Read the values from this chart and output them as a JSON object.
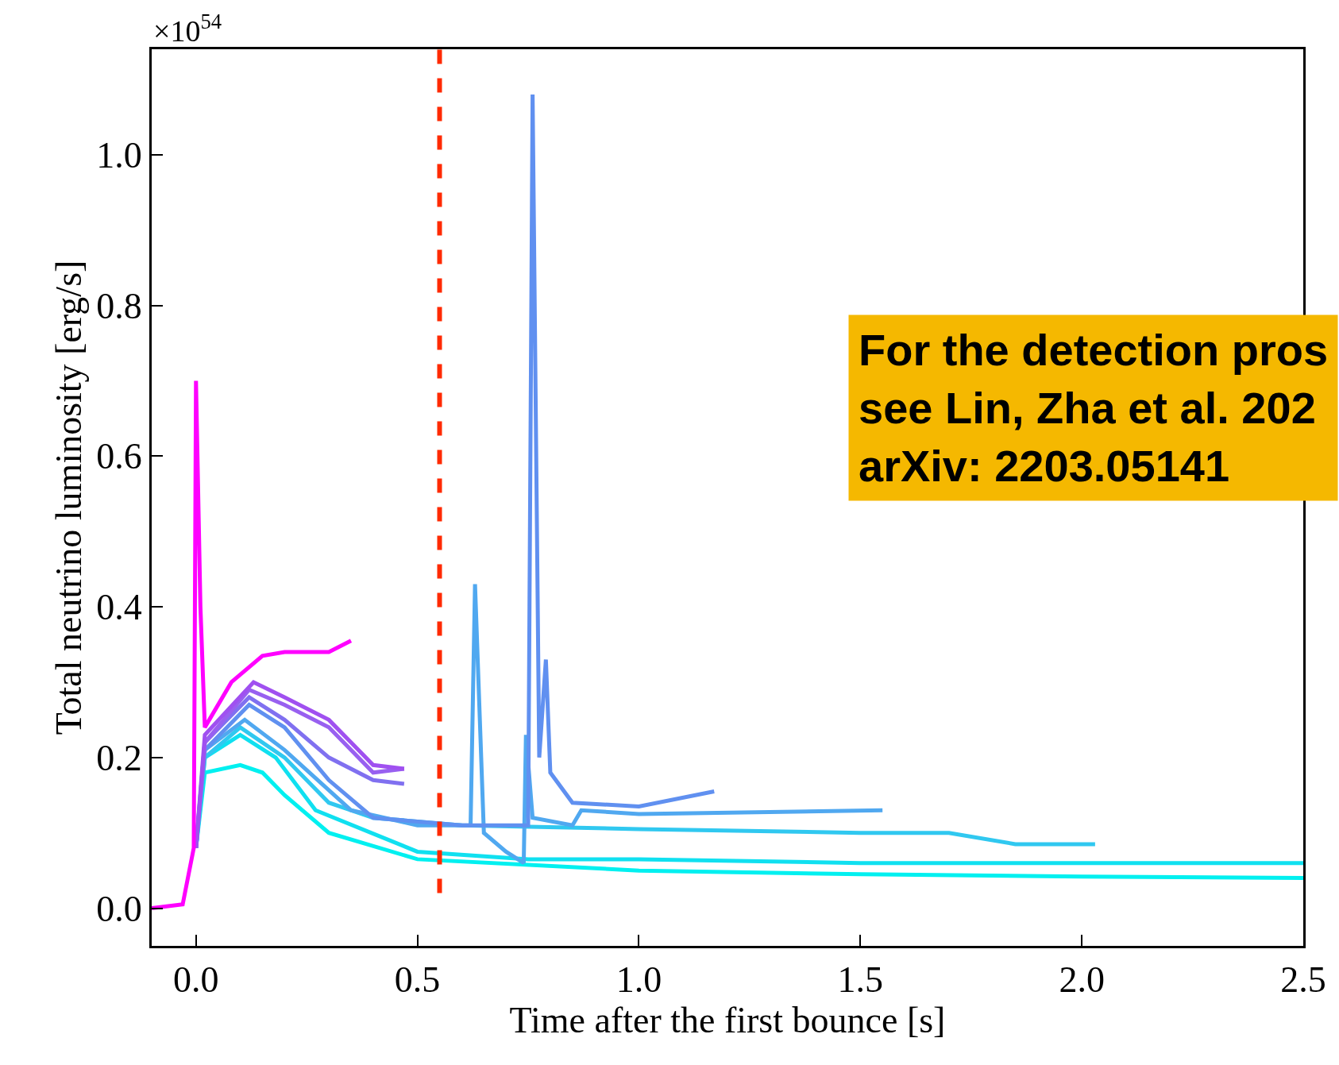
{
  "chart_data": {
    "type": "line",
    "xlabel": "Time after the first bounce [s]",
    "ylabel": "Total neutrino luminosity [erg/s]",
    "xlim": [
      -0.1,
      2.5
    ],
    "xticks": [
      {
        "value": 0,
        "label": "0.0"
      },
      0.5,
      {
        "value": 1,
        "label": "1.0"
      },
      1.5,
      {
        "value": 2,
        "label": "2.0"
      },
      2.5
    ],
    "ylim": [
      -0.05,
      1.14
    ],
    "yticks": [
      {
        "value": 0,
        "label": "0.0"
      },
      0.2,
      0.4,
      0.6,
      0.8,
      {
        "value": 1,
        "label": "1.0"
      }
    ],
    "marker": "none",
    "line_style": "solid",
    "ref_lines": [
      {
        "axis": "x",
        "value": 0.55,
        "label": null,
        "color": "#ff2a00",
        "line_style": "dashed"
      }
    ],
    "annotations": [
      "×10$^{54}$",
      "For the detection pros\nsee Lin, Zha et al. 202\narXiv: 2203.05141"
    ],
    "series": [
      {
        "color": "#00f0f0",
        "x": [
          0,
          0.02,
          0.1,
          0.15,
          0.2,
          0.3,
          0.5,
          1.0,
          1.5,
          2.0,
          2.5
        ],
        "values": [
          0.08,
          0.18,
          0.19,
          0.18,
          0.15,
          0.1,
          0.065,
          0.05,
          0.045,
          0.042,
          0.04
        ]
      },
      {
        "color": "#10e0f0",
        "x": [
          0,
          0.02,
          0.1,
          0.18,
          0.27,
          0.5,
          0.75,
          1.0,
          1.5,
          2.5
        ],
        "values": [
          0.08,
          0.2,
          0.23,
          0.2,
          0.13,
          0.075,
          0.065,
          0.065,
          0.06,
          0.06
        ]
      },
      {
        "color": "#30c8f0",
        "x": [
          0,
          0.02,
          0.1,
          0.2,
          0.3,
          0.4,
          0.6,
          1.0,
          1.5,
          1.7,
          1.85,
          2.03
        ],
        "values": [
          0.08,
          0.2,
          0.24,
          0.2,
          0.14,
          0.12,
          0.11,
          0.105,
          0.1,
          0.1,
          0.085,
          0.085
        ]
      },
      {
        "color": "#50a8f0",
        "x": [
          0,
          0.02,
          0.11,
          0.2,
          0.35,
          0.5,
          0.62,
          0.63,
          0.65,
          0.7,
          0.74,
          0.745,
          0.76,
          0.85,
          0.87,
          1.0,
          1.55
        ],
        "values": [
          0.08,
          0.21,
          0.25,
          0.21,
          0.13,
          0.11,
          0.11,
          0.43,
          0.1,
          0.075,
          0.06,
          0.23,
          0.12,
          0.11,
          0.13,
          0.125,
          0.13
        ]
      },
      {
        "color": "#6090f0",
        "x": [
          0,
          0.02,
          0.12,
          0.2,
          0.3,
          0.4,
          0.6,
          0.75,
          0.76,
          0.775,
          0.79,
          0.8,
          0.85,
          1.0,
          1.17
        ],
        "values": [
          0.08,
          0.21,
          0.27,
          0.24,
          0.17,
          0.12,
          0.11,
          0.11,
          1.08,
          0.2,
          0.33,
          0.18,
          0.14,
          0.135,
          0.155
        ]
      },
      {
        "color": "#8070f0",
        "x": [
          0,
          0.02,
          0.12,
          0.2,
          0.3,
          0.4,
          0.47
        ],
        "values": [
          0.08,
          0.22,
          0.28,
          0.25,
          0.2,
          0.17,
          0.165
        ]
      },
      {
        "color": "#9860f0",
        "x": [
          0,
          0.02,
          0.12,
          0.2,
          0.3,
          0.35,
          0.4,
          0.47
        ],
        "values": [
          0.08,
          0.22,
          0.29,
          0.27,
          0.24,
          0.21,
          0.18,
          0.185
        ]
      },
      {
        "color": "#a050f0",
        "x": [
          0,
          0.02,
          0.13,
          0.2,
          0.3,
          0.35,
          0.4,
          0.47
        ],
        "values": [
          0.08,
          0.23,
          0.3,
          0.28,
          0.25,
          0.22,
          0.19,
          0.185
        ]
      },
      {
        "color": "#ff00ff",
        "x": [
          -0.1,
          -0.03,
          -0.005,
          0,
          0.01,
          0.02,
          0.08,
          0.15,
          0.2,
          0.3,
          0.35
        ],
        "values": [
          0,
          0.005,
          0.08,
          0.7,
          0.4,
          0.24,
          0.3,
          0.335,
          0.34,
          0.34,
          0.355
        ]
      }
    ]
  }
}
